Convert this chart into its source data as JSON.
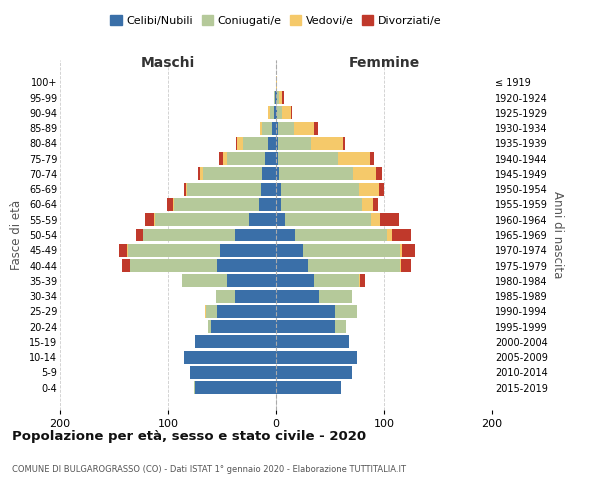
{
  "age_groups": [
    "0-4",
    "5-9",
    "10-14",
    "15-19",
    "20-24",
    "25-29",
    "30-34",
    "35-39",
    "40-44",
    "45-49",
    "50-54",
    "55-59",
    "60-64",
    "65-69",
    "70-74",
    "75-79",
    "80-84",
    "85-89",
    "90-94",
    "95-99",
    "100+"
  ],
  "birth_years": [
    "2015-2019",
    "2010-2014",
    "2005-2009",
    "2000-2004",
    "1995-1999",
    "1990-1994",
    "1985-1989",
    "1980-1984",
    "1975-1979",
    "1970-1974",
    "1965-1969",
    "1960-1964",
    "1955-1959",
    "1950-1954",
    "1945-1949",
    "1940-1944",
    "1935-1939",
    "1930-1934",
    "1925-1929",
    "1920-1924",
    "≤ 1919"
  ],
  "colors": {
    "celibe": "#3a6fa8",
    "coniugato": "#b5c99a",
    "vedovo": "#f5c96a",
    "divorziato": "#c0392b"
  },
  "maschi": {
    "celibe": [
      75,
      80,
      85,
      75,
      60,
      55,
      38,
      45,
      55,
      52,
      38,
      25,
      16,
      14,
      13,
      10,
      7,
      4,
      2,
      1,
      0
    ],
    "coniugato": [
      1,
      0,
      0,
      0,
      3,
      10,
      18,
      42,
      80,
      85,
      85,
      87,
      78,
      68,
      55,
      35,
      24,
      9,
      4,
      1,
      0
    ],
    "vedovo": [
      0,
      0,
      0,
      0,
      0,
      1,
      0,
      0,
      0,
      1,
      0,
      1,
      1,
      1,
      2,
      4,
      5,
      2,
      1,
      0,
      0
    ],
    "divorziato": [
      0,
      0,
      0,
      0,
      0,
      0,
      0,
      0,
      8,
      7,
      7,
      8,
      6,
      2,
      2,
      4,
      1,
      0,
      0,
      0,
      0
    ]
  },
  "femmine": {
    "celibe": [
      60,
      70,
      75,
      68,
      55,
      55,
      40,
      35,
      30,
      25,
      18,
      8,
      5,
      5,
      3,
      2,
      2,
      2,
      1,
      1,
      0
    ],
    "coniugato": [
      0,
      0,
      0,
      0,
      10,
      20,
      30,
      42,
      85,
      90,
      85,
      80,
      75,
      72,
      68,
      55,
      30,
      15,
      5,
      2,
      0
    ],
    "vedovo": [
      0,
      0,
      0,
      0,
      0,
      0,
      0,
      1,
      1,
      2,
      4,
      8,
      10,
      18,
      22,
      30,
      30,
      18,
      8,
      3,
      1
    ],
    "divorziato": [
      0,
      0,
      0,
      0,
      0,
      0,
      0,
      4,
      9,
      12,
      18,
      18,
      4,
      5,
      5,
      4,
      2,
      4,
      1,
      1,
      0
    ]
  },
  "title": "Popolazione per età, sesso e stato civile - 2020",
  "subtitle": "COMUNE DI BULGAROGRASSO (CO) - Dati ISTAT 1° gennaio 2020 - Elaborazione TUTTITALIA.IT",
  "xlabel_left": "Maschi",
  "xlabel_right": "Femmine",
  "ylabel_left": "Fasce di età",
  "ylabel_right": "Anni di nascita",
  "xlim": 200,
  "legend_labels": [
    "Celibi/Nubili",
    "Coniugati/e",
    "Vedovi/e",
    "Divorziati/e"
  ],
  "bg_color": "#ffffff",
  "grid_color": "#cccccc"
}
